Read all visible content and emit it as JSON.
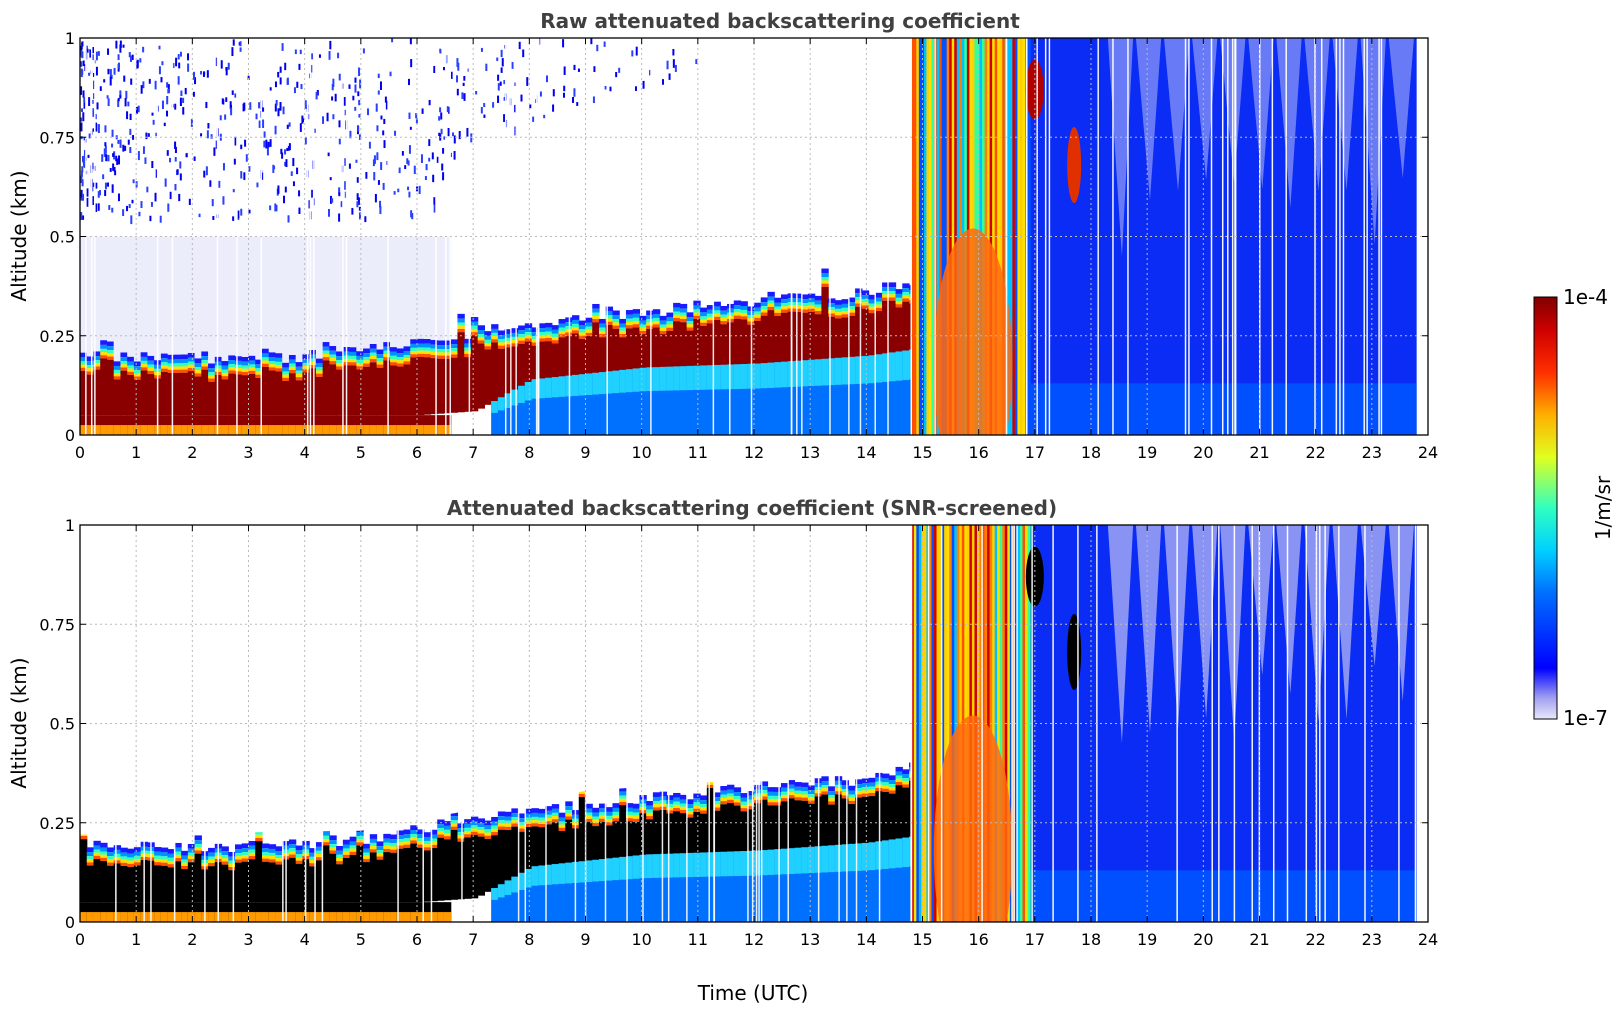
{
  "chart_data": [
    {
      "type": "heatmap",
      "title": "Raw attenuated backscattering coefficient",
      "xlabel": "",
      "ylabel": "Altitude (km)",
      "xlim": [
        0,
        24
      ],
      "ylim": [
        0,
        1
      ],
      "x_ticks": [
        "0",
        "1",
        "2",
        "3",
        "4",
        "5",
        "6",
        "7",
        "8",
        "9",
        "10",
        "11",
        "12",
        "13",
        "14",
        "15",
        "16",
        "17",
        "18",
        "19",
        "20",
        "21",
        "22",
        "23",
        "24"
      ],
      "y_ticks": [
        "0",
        "0.25",
        "0.5",
        "0.75",
        "1"
      ],
      "grid": true,
      "screened": false,
      "layer_top_km": [
        [
          0,
          0.2
        ],
        [
          3,
          0.19
        ],
        [
          5,
          0.21
        ],
        [
          6.5,
          0.25
        ],
        [
          8,
          0.28
        ],
        [
          10,
          0.31
        ],
        [
          12,
          0.34
        ],
        [
          14,
          0.36
        ],
        [
          15,
          0.4
        ]
      ],
      "layer_bottom_km": [
        [
          0,
          0.05
        ],
        [
          6,
          0.05
        ],
        [
          7,
          0.06
        ],
        [
          8,
          0.14
        ],
        [
          10,
          0.17
        ],
        [
          12,
          0.18
        ],
        [
          14,
          0.2
        ],
        [
          15,
          0.22
        ]
      ],
      "cloud_hours": [
        14.8,
        16.9
      ]
    },
    {
      "type": "heatmap",
      "title": "Attenuated backscattering coefficient (SNR-screened)",
      "xlabel": "Time (UTC)",
      "ylabel": "Altitude (km)",
      "xlim": [
        0,
        24
      ],
      "ylim": [
        0,
        1
      ],
      "x_ticks": [
        "0",
        "1",
        "2",
        "3",
        "4",
        "5",
        "6",
        "7",
        "8",
        "9",
        "10",
        "11",
        "12",
        "13",
        "14",
        "15",
        "16",
        "17",
        "18",
        "19",
        "20",
        "21",
        "22",
        "23",
        "24"
      ],
      "y_ticks": [
        "0",
        "0.25",
        "0.5",
        "0.75",
        "1"
      ],
      "grid": true,
      "screened": true,
      "layer_top_km": [
        [
          0,
          0.2
        ],
        [
          3,
          0.19
        ],
        [
          5,
          0.21
        ],
        [
          6.5,
          0.25
        ],
        [
          8,
          0.28
        ],
        [
          10,
          0.31
        ],
        [
          12,
          0.34
        ],
        [
          14,
          0.36
        ],
        [
          15,
          0.4
        ]
      ],
      "layer_bottom_km": [
        [
          0,
          0.05
        ],
        [
          6,
          0.05
        ],
        [
          7,
          0.06
        ],
        [
          8,
          0.14
        ],
        [
          10,
          0.17
        ],
        [
          12,
          0.18
        ],
        [
          14,
          0.2
        ],
        [
          15,
          0.22
        ]
      ],
      "cloud_hours": [
        14.8,
        16.9
      ]
    }
  ],
  "colorbar": {
    "max_label": "1e-4",
    "min_label": "1e-7",
    "unit": "1/m/sr",
    "colormap": "jet"
  }
}
